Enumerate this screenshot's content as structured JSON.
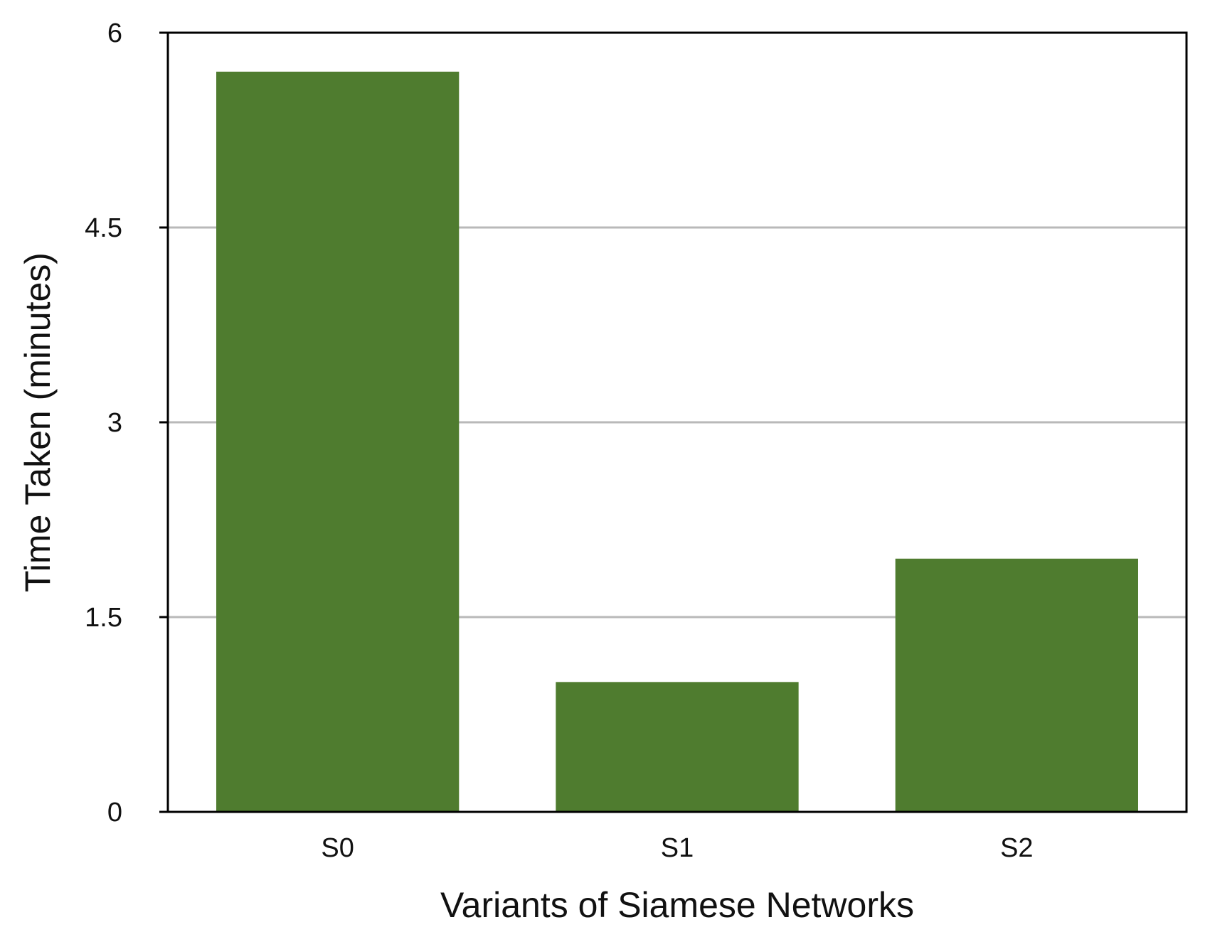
{
  "chart_data": {
    "type": "bar",
    "title": "",
    "xlabel": "Variants of Siamese Networks",
    "ylabel": "Time Taken (minutes)",
    "categories": [
      "S0",
      "S1",
      "S2"
    ],
    "values": [
      5.7,
      1.0,
      1.95
    ],
    "ylim": [
      0,
      6
    ],
    "yticks": [
      0,
      1.5,
      3,
      4.5,
      6
    ],
    "ytick_labels": [
      "0",
      "1.5",
      "3",
      "4.5",
      "6"
    ],
    "grid": true,
    "legend": "none",
    "colors": {
      "bar": "#4f7c2f",
      "grid": "#b9b9b9",
      "axis": "#000000"
    }
  }
}
